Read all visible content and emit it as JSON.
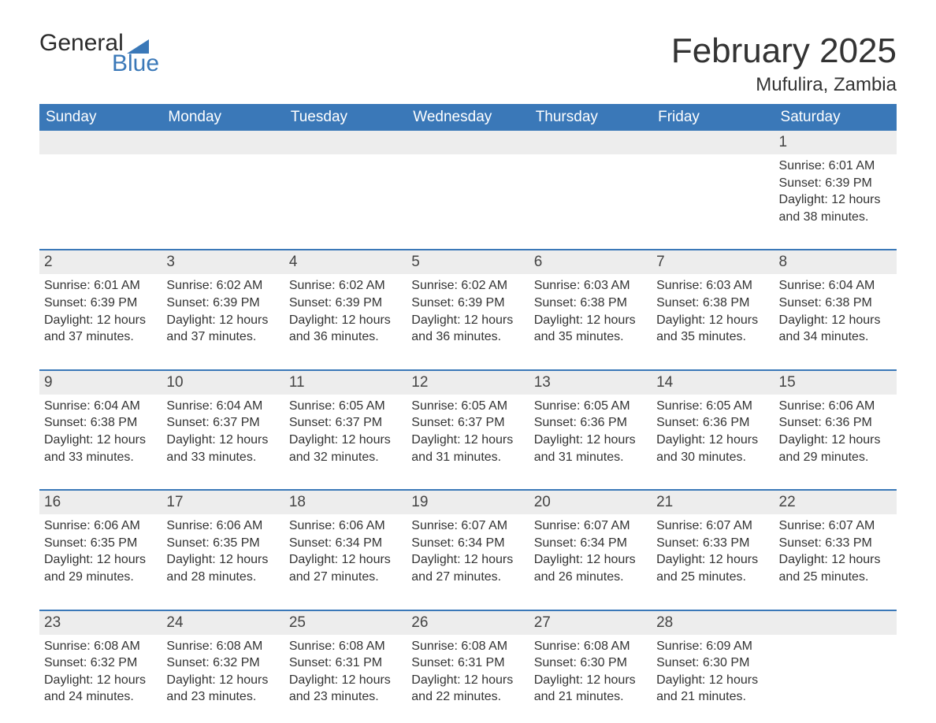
{
  "brand": {
    "word1": "General",
    "word2": "Blue"
  },
  "title": "February 2025",
  "subtitle": "Mufulira, Zambia",
  "colors": {
    "header_bg": "#3a78b8",
    "row_separator": "#3a78b8",
    "daynum_bg": "#ededed",
    "text": "#333333",
    "brand_blue": "#3a78b8"
  },
  "day_names": [
    "Sunday",
    "Monday",
    "Tuesday",
    "Wednesday",
    "Thursday",
    "Friday",
    "Saturday"
  ],
  "weeks": [
    [
      null,
      null,
      null,
      null,
      null,
      null,
      {
        "n": "1",
        "sr": "6:01 AM",
        "ss": "6:39 PM",
        "dl": "12 hours and 38 minutes."
      }
    ],
    [
      {
        "n": "2",
        "sr": "6:01 AM",
        "ss": "6:39 PM",
        "dl": "12 hours and 37 minutes."
      },
      {
        "n": "3",
        "sr": "6:02 AM",
        "ss": "6:39 PM",
        "dl": "12 hours and 37 minutes."
      },
      {
        "n": "4",
        "sr": "6:02 AM",
        "ss": "6:39 PM",
        "dl": "12 hours and 36 minutes."
      },
      {
        "n": "5",
        "sr": "6:02 AM",
        "ss": "6:39 PM",
        "dl": "12 hours and 36 minutes."
      },
      {
        "n": "6",
        "sr": "6:03 AM",
        "ss": "6:38 PM",
        "dl": "12 hours and 35 minutes."
      },
      {
        "n": "7",
        "sr": "6:03 AM",
        "ss": "6:38 PM",
        "dl": "12 hours and 35 minutes."
      },
      {
        "n": "8",
        "sr": "6:04 AM",
        "ss": "6:38 PM",
        "dl": "12 hours and 34 minutes."
      }
    ],
    [
      {
        "n": "9",
        "sr": "6:04 AM",
        "ss": "6:38 PM",
        "dl": "12 hours and 33 minutes."
      },
      {
        "n": "10",
        "sr": "6:04 AM",
        "ss": "6:37 PM",
        "dl": "12 hours and 33 minutes."
      },
      {
        "n": "11",
        "sr": "6:05 AM",
        "ss": "6:37 PM",
        "dl": "12 hours and 32 minutes."
      },
      {
        "n": "12",
        "sr": "6:05 AM",
        "ss": "6:37 PM",
        "dl": "12 hours and 31 minutes."
      },
      {
        "n": "13",
        "sr": "6:05 AM",
        "ss": "6:36 PM",
        "dl": "12 hours and 31 minutes."
      },
      {
        "n": "14",
        "sr": "6:05 AM",
        "ss": "6:36 PM",
        "dl": "12 hours and 30 minutes."
      },
      {
        "n": "15",
        "sr": "6:06 AM",
        "ss": "6:36 PM",
        "dl": "12 hours and 29 minutes."
      }
    ],
    [
      {
        "n": "16",
        "sr": "6:06 AM",
        "ss": "6:35 PM",
        "dl": "12 hours and 29 minutes."
      },
      {
        "n": "17",
        "sr": "6:06 AM",
        "ss": "6:35 PM",
        "dl": "12 hours and 28 minutes."
      },
      {
        "n": "18",
        "sr": "6:06 AM",
        "ss": "6:34 PM",
        "dl": "12 hours and 27 minutes."
      },
      {
        "n": "19",
        "sr": "6:07 AM",
        "ss": "6:34 PM",
        "dl": "12 hours and 27 minutes."
      },
      {
        "n": "20",
        "sr": "6:07 AM",
        "ss": "6:34 PM",
        "dl": "12 hours and 26 minutes."
      },
      {
        "n": "21",
        "sr": "6:07 AM",
        "ss": "6:33 PM",
        "dl": "12 hours and 25 minutes."
      },
      {
        "n": "22",
        "sr": "6:07 AM",
        "ss": "6:33 PM",
        "dl": "12 hours and 25 minutes."
      }
    ],
    [
      {
        "n": "23",
        "sr": "6:08 AM",
        "ss": "6:32 PM",
        "dl": "12 hours and 24 minutes."
      },
      {
        "n": "24",
        "sr": "6:08 AM",
        "ss": "6:32 PM",
        "dl": "12 hours and 23 minutes."
      },
      {
        "n": "25",
        "sr": "6:08 AM",
        "ss": "6:31 PM",
        "dl": "12 hours and 23 minutes."
      },
      {
        "n": "26",
        "sr": "6:08 AM",
        "ss": "6:31 PM",
        "dl": "12 hours and 22 minutes."
      },
      {
        "n": "27",
        "sr": "6:08 AM",
        "ss": "6:30 PM",
        "dl": "12 hours and 21 minutes."
      },
      {
        "n": "28",
        "sr": "6:09 AM",
        "ss": "6:30 PM",
        "dl": "12 hours and 21 minutes."
      },
      null
    ]
  ],
  "labels": {
    "sunrise_prefix": "Sunrise: ",
    "sunset_prefix": "Sunset: ",
    "daylight_prefix": "Daylight: "
  }
}
